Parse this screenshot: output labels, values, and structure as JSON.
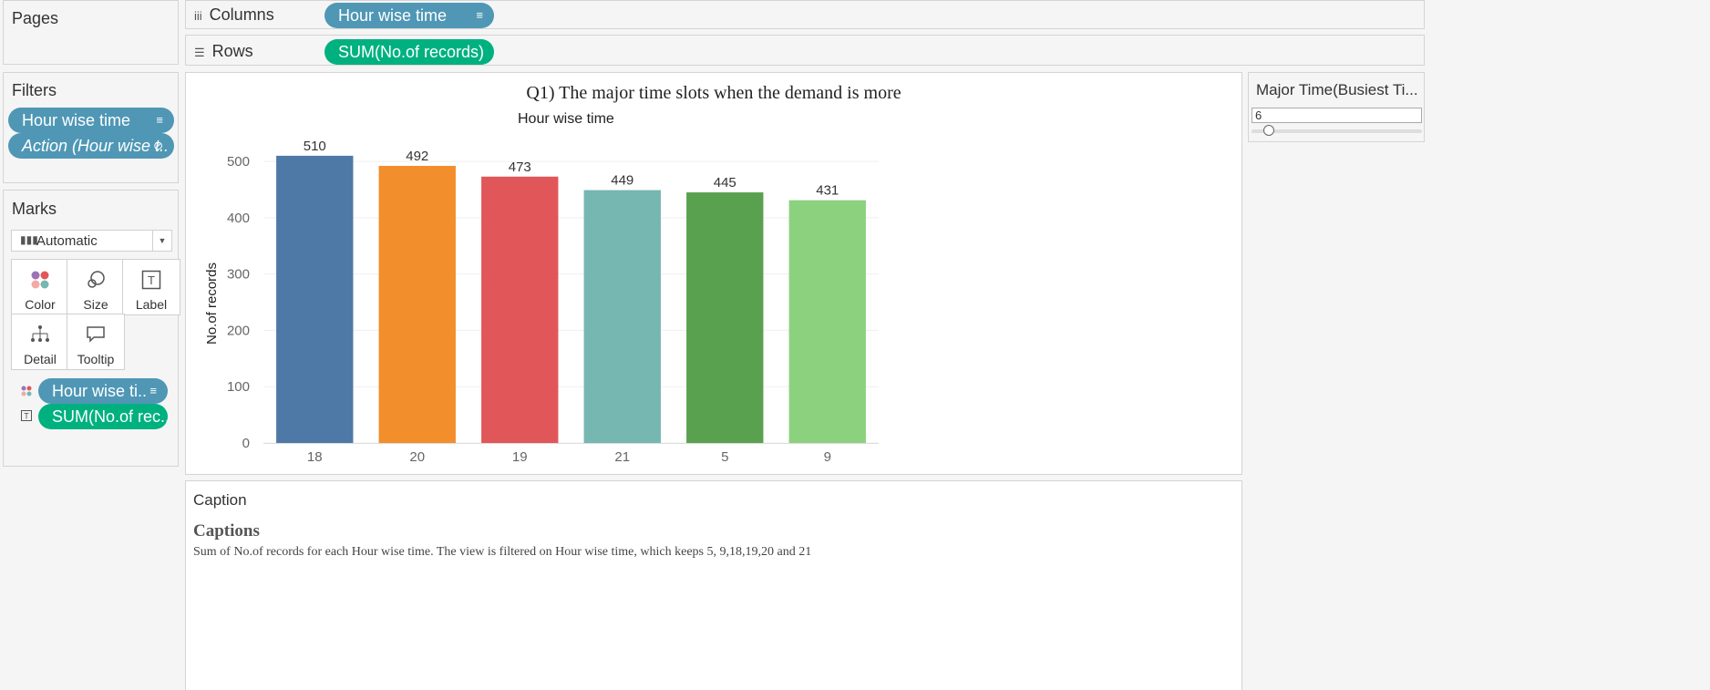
{
  "pages": {
    "title": "Pages"
  },
  "columns": {
    "label": "Columns",
    "pill": "Hour wise time"
  },
  "rows": {
    "label": "Rows",
    "pill": "SUM(No.of records)"
  },
  "filters": {
    "title": "Filters",
    "pill1": "Hour wise time",
    "pill2": "Action (Hour wise t.."
  },
  "marks": {
    "title": "Marks",
    "type": "Automatic",
    "cards": {
      "color": "Color",
      "size": "Size",
      "label": "Label",
      "detail": "Detail",
      "tooltip": "Tooltip"
    },
    "pill_color": "Hour wise ti..",
    "pill_label": "SUM(No.of rec.."
  },
  "view": {
    "title": "Q1) The major time slots when the demand is more"
  },
  "chart_data": {
    "type": "bar",
    "title": "Hour wise time",
    "xlabel": "",
    "ylabel": "No.of records",
    "categories": [
      "18",
      "20",
      "19",
      "21",
      "5",
      "9"
    ],
    "values": [
      510,
      492,
      473,
      449,
      445,
      431
    ],
    "colors": [
      "#4e79a7",
      "#f28e2b",
      "#e15759",
      "#76b7b2",
      "#59a14f",
      "#8cd17d"
    ],
    "ylim": [
      0,
      560
    ],
    "yticks": [
      0,
      100,
      200,
      300,
      400,
      500
    ],
    "grid": true
  },
  "parameter": {
    "title": "Major Time(Busiest Ti...",
    "value": "6",
    "slider_fraction": 0.05
  },
  "caption": {
    "header": "Caption",
    "title": "Captions",
    "text": "Sum of No.of records for each Hour wise time. The view is filtered on Hour wise time, which keeps 5, 9,18,19,20 and 21"
  }
}
